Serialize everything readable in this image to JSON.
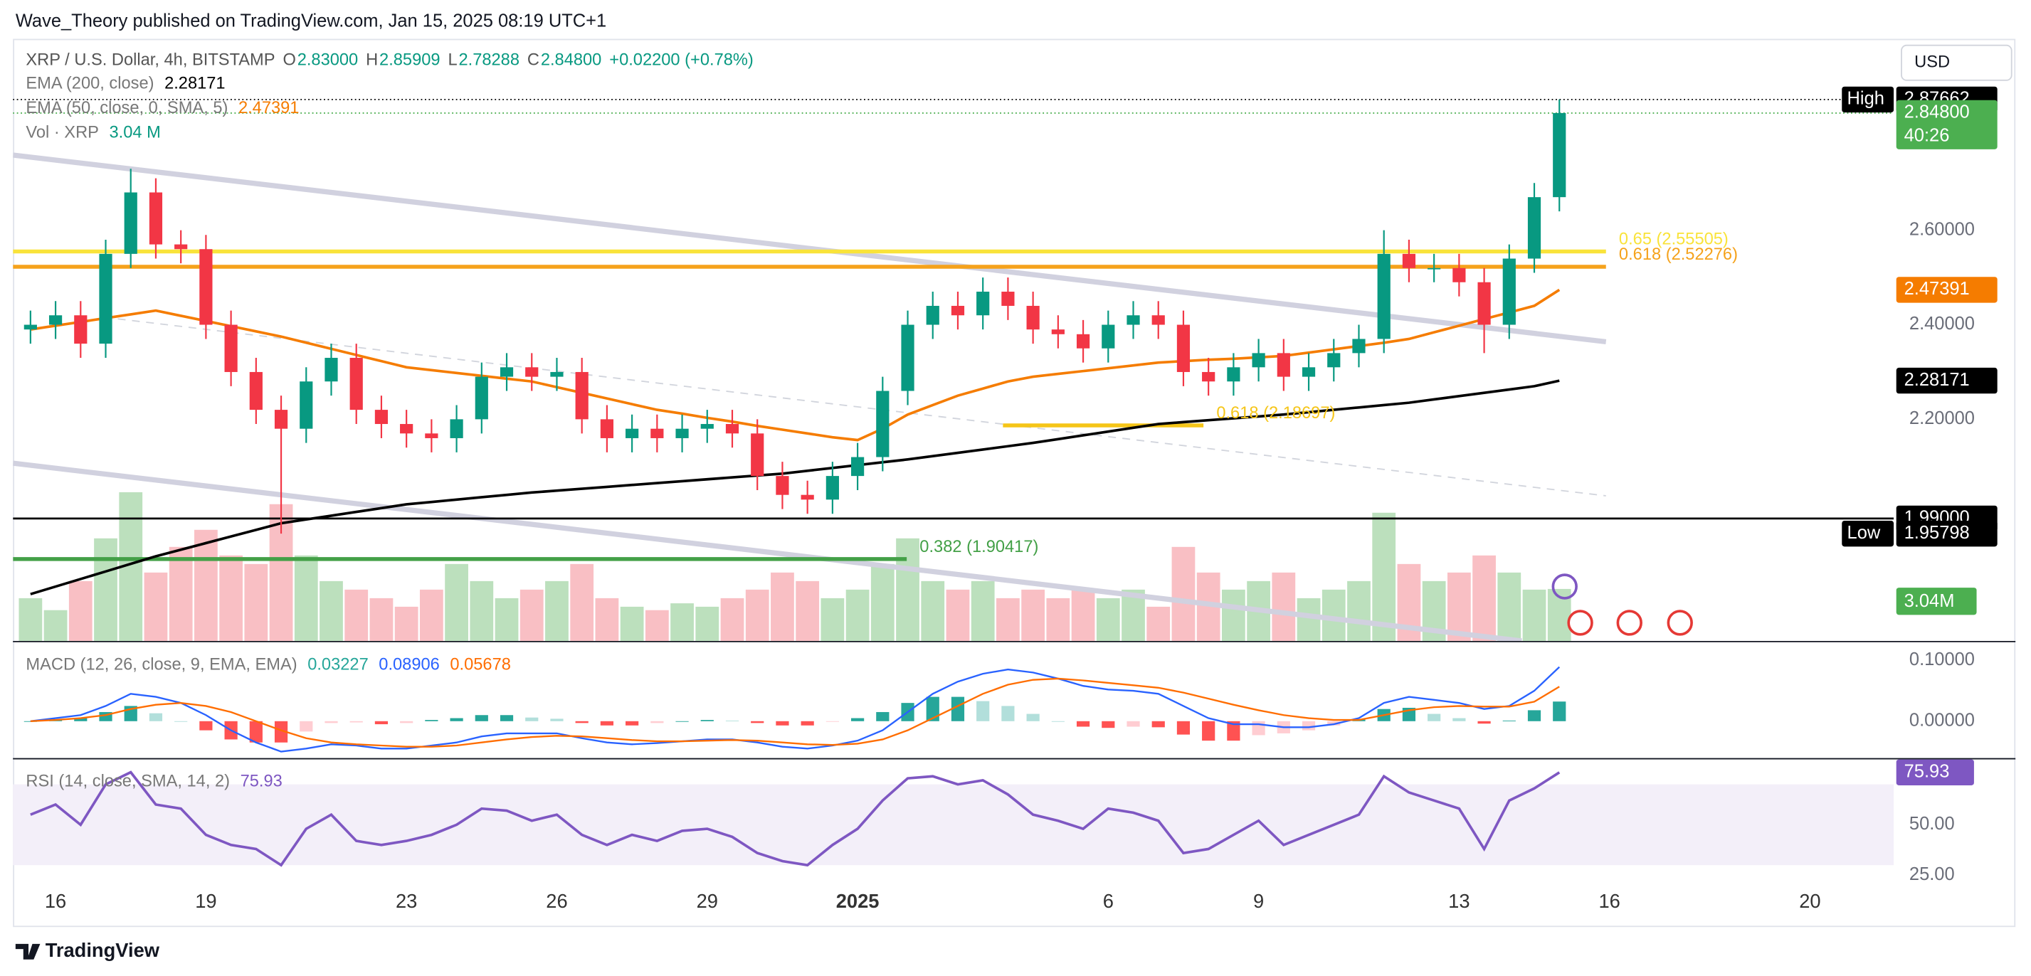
{
  "header": "Wave_Theory published on TradingView.com, Jan 15, 2025 08:19 UTC+1",
  "footer": "TradingView",
  "currency": "USD",
  "chart_data": [
    {
      "type": "candlestick",
      "title": "XRP / U.S. Dollar, 4h, BITSTAMP",
      "ohlc_legend": [
        "O",
        "2.83000",
        "H",
        "2.85909",
        "L",
        "2.78288",
        "C",
        "2.84800"
      ],
      "change": "+0.02200 (+0.78%)",
      "countdown": "40:26",
      "colors": {
        "up": "#089981",
        "down": "#f23645"
      },
      "xlim": [
        0.15,
        37.67
      ],
      "xticks": [
        {
          "value": 1,
          "label": "16"
        },
        {
          "value": 4,
          "label": "19"
        },
        {
          "value": 8,
          "label": "23"
        },
        {
          "value": 11,
          "label": "26"
        },
        {
          "value": 14,
          "label": "29"
        },
        {
          "value": 17,
          "label": "2025"
        },
        {
          "value": 22,
          "label": "6"
        },
        {
          "value": 25,
          "label": "9"
        },
        {
          "value": 29,
          "label": "13"
        },
        {
          "value": 32,
          "label": "16"
        },
        {
          "value": 36,
          "label": "20"
        }
      ],
      "ylim": [
        1.731,
        3.005
      ],
      "yticks": [
        {
          "value": 2.2,
          "label": "2.20000"
        },
        {
          "value": 2.4,
          "label": "2.40000"
        },
        {
          "value": 2.6,
          "label": "2.60000"
        }
      ],
      "grid": false,
      "x": [
        0.5,
        1,
        1.5,
        2,
        2.5,
        3,
        3.5,
        4,
        4.5,
        5,
        5.5,
        6,
        6.5,
        7,
        7.5,
        8,
        8.5,
        9,
        9.5,
        10,
        10.5,
        11,
        11.5,
        12,
        12.5,
        13,
        13.5,
        14,
        14.5,
        15,
        15.5,
        16,
        16.5,
        17,
        17.5,
        18,
        18.5,
        19,
        19.5,
        20,
        20.5,
        21,
        21.5,
        22,
        22.5,
        23,
        23.5,
        24,
        24.5,
        25,
        25.5,
        26,
        26.5,
        27,
        27.5,
        28,
        28.5,
        29,
        29.5,
        30,
        30.5,
        31
      ],
      "open": [
        2.39,
        2.4,
        2.42,
        2.36,
        2.55,
        2.68,
        2.57,
        2.56,
        2.4,
        2.3,
        2.22,
        2.18,
        2.28,
        2.33,
        2.22,
        2.19,
        2.17,
        2.16,
        2.2,
        2.29,
        2.31,
        2.29,
        2.3,
        2.2,
        2.16,
        2.18,
        2.16,
        2.18,
        2.19,
        2.17,
        2.08,
        2.04,
        2.03,
        2.08,
        2.12,
        2.26,
        2.4,
        2.44,
        2.42,
        2.47,
        2.44,
        2.39,
        2.38,
        2.35,
        2.4,
        2.42,
        2.4,
        2.3,
        2.28,
        2.31,
        2.34,
        2.29,
        2.31,
        2.34,
        2.37,
        2.55,
        2.52,
        2.52,
        2.49,
        2.4,
        2.54,
        2.67
      ],
      "high": [
        2.43,
        2.45,
        2.45,
        2.58,
        2.73,
        2.71,
        2.6,
        2.59,
        2.43,
        2.33,
        2.25,
        2.31,
        2.36,
        2.36,
        2.25,
        2.22,
        2.2,
        2.23,
        2.32,
        2.34,
        2.34,
        2.33,
        2.33,
        2.23,
        2.21,
        2.21,
        2.21,
        2.22,
        2.22,
        2.2,
        2.11,
        2.07,
        2.11,
        2.15,
        2.29,
        2.43,
        2.47,
        2.47,
        2.5,
        2.5,
        2.47,
        2.42,
        2.41,
        2.43,
        2.45,
        2.45,
        2.43,
        2.33,
        2.34,
        2.37,
        2.37,
        2.34,
        2.37,
        2.4,
        2.6,
        2.58,
        2.55,
        2.55,
        2.52,
        2.57,
        2.7,
        2.87662
      ],
      "low": [
        2.36,
        2.37,
        2.33,
        2.33,
        2.52,
        2.54,
        2.53,
        2.37,
        2.27,
        2.19,
        1.95798,
        2.15,
        2.25,
        2.19,
        2.16,
        2.14,
        2.13,
        2.13,
        2.17,
        2.26,
        2.26,
        2.26,
        2.17,
        2.13,
        2.13,
        2.13,
        2.13,
        2.15,
        2.14,
        2.05,
        2.01,
        2.0,
        2.0,
        2.05,
        2.09,
        2.23,
        2.37,
        2.39,
        2.39,
        2.41,
        2.36,
        2.35,
        2.32,
        2.32,
        2.37,
        2.37,
        2.27,
        2.25,
        2.25,
        2.28,
        2.26,
        2.26,
        2.28,
        2.31,
        2.34,
        2.49,
        2.49,
        2.46,
        2.34,
        2.37,
        2.51,
        2.64
      ],
      "close": [
        2.4,
        2.42,
        2.36,
        2.55,
        2.68,
        2.57,
        2.56,
        2.4,
        2.3,
        2.22,
        2.18,
        2.28,
        2.33,
        2.22,
        2.19,
        2.17,
        2.16,
        2.2,
        2.29,
        2.31,
        2.29,
        2.3,
        2.2,
        2.16,
        2.18,
        2.16,
        2.18,
        2.19,
        2.17,
        2.08,
        2.04,
        2.03,
        2.08,
        2.12,
        2.26,
        2.4,
        2.44,
        2.42,
        2.47,
        2.44,
        2.39,
        2.38,
        2.35,
        2.4,
        2.42,
        2.4,
        2.3,
        2.28,
        2.31,
        2.34,
        2.29,
        2.31,
        2.34,
        2.37,
        2.55,
        2.52,
        2.52,
        2.49,
        2.4,
        2.54,
        2.67,
        2.848
      ],
      "series": [
        {
          "name": "EMA (200, close)",
          "color": "#000000",
          "values": [
            1.83,
            1.846,
            1.862,
            1.878,
            1.894,
            1.91,
            1.924,
            1.938,
            1.952,
            1.966,
            1.98,
            1.988,
            1.996,
            2.004,
            2.012,
            2.02,
            2.025,
            2.03,
            2.035,
            2.04,
            2.045,
            2.049,
            2.053,
            2.057,
            2.061,
            2.065,
            2.069,
            2.073,
            2.077,
            2.081,
            2.085,
            2.091,
            2.097,
            2.103,
            2.109,
            2.115,
            2.122,
            2.129,
            2.136,
            2.143,
            2.15,
            2.158,
            2.166,
            2.174,
            2.182,
            2.19,
            2.194,
            2.198,
            2.202,
            2.206,
            2.21,
            2.215,
            2.22,
            2.225,
            2.23,
            2.235,
            2.242,
            2.249,
            2.256,
            2.263,
            2.27,
            2.28171
          ]
        },
        {
          "name": "EMA (50, close, 0, SMA, 5)",
          "color": "#f57c00",
          "values": [
            2.39,
            2.398,
            2.406,
            2.414,
            2.422,
            2.43,
            2.419,
            2.408,
            2.397,
            2.386,
            2.375,
            2.362,
            2.349,
            2.336,
            2.323,
            2.31,
            2.304,
            2.298,
            2.292,
            2.286,
            2.28,
            2.268,
            2.256,
            2.244,
            2.232,
            2.22,
            2.212,
            2.203,
            2.195,
            2.186,
            2.178,
            2.17,
            2.162,
            2.156,
            2.18,
            2.21,
            2.23,
            2.25,
            2.265,
            2.28,
            2.29,
            2.296,
            2.302,
            2.308,
            2.314,
            2.32,
            2.323,
            2.326,
            2.328,
            2.331,
            2.334,
            2.341,
            2.348,
            2.355,
            2.362,
            2.37,
            2.384,
            2.398,
            2.412,
            2.426,
            2.44,
            2.47391
          ]
        }
      ],
      "levels": [
        {
          "label": "0.65 (2.55505)",
          "value": 2.55505,
          "color": "#f9e33a",
          "x": [
            0.15,
            31.93
          ]
        },
        {
          "label": "0.618 (2.52276)",
          "value": 2.52276,
          "color": "#f5a21b",
          "x": [
            0.15,
            31.93
          ]
        },
        {
          "label": "0.618 (2.18697)",
          "value": 2.18697,
          "color": "#f5c518",
          "x": [
            19.9,
            23.9
          ]
        },
        {
          "label": "0.382 (1.90417)",
          "value": 1.90417,
          "color": "#43a047",
          "x": [
            0.15,
            17.98
          ]
        },
        {
          "value": 1.99,
          "color": "#000000",
          "x": [
            0.15,
            37.67
          ]
        }
      ],
      "trendlines": [
        {
          "x": [
            0.15,
            31.93
          ],
          "y": [
            2.759,
            2.364
          ],
          "color": "#d1d1df",
          "style": "solid"
        },
        {
          "x": [
            0.15,
            30.25
          ],
          "y": [
            2.107,
            1.731
          ],
          "color": "#d1d1df",
          "style": "solid"
        },
        {
          "x": [
            1.96,
            31.93
          ],
          "y": [
            2.416,
            2.038
          ],
          "color": "#d1d4dc",
          "style": "dashed"
        }
      ],
      "price_labels": [
        {
          "value": 2.848,
          "label": "2.84800",
          "color": "#4caf50",
          "line": "dotted"
        },
        {
          "value": 2.87662,
          "label": "2.87662",
          "color": "#000000",
          "tag": "High",
          "line": "dotted"
        },
        {
          "value": 2.47391,
          "label": "2.47391",
          "color": "#f57c00"
        },
        {
          "value": 2.28171,
          "label": "2.28171",
          "color": "#000000"
        },
        {
          "value": 1.99,
          "label": "1.99000",
          "color": "#000000"
        },
        {
          "value": 1.95798,
          "label": "1.95798",
          "color": "#000000",
          "tag": "Low"
        }
      ]
    },
    {
      "type": "bar",
      "title": "Vol · XRP",
      "legend_value": "3.04 M",
      "badge": "3.04M",
      "colors": {
        "up": "#a5d6a7",
        "down": "#f7a9b0"
      },
      "ylim": [
        0,
        10
      ],
      "values": [
        2.5,
        1.8,
        3.5,
        6.0,
        8.7,
        4.0,
        5.5,
        6.5,
        5.0,
        4.5,
        8.0,
        5.0,
        3.5,
        3.0,
        2.5,
        2.0,
        3.0,
        4.5,
        3.5,
        2.5,
        3.0,
        3.5,
        4.5,
        2.5,
        2.0,
        1.8,
        2.2,
        2.0,
        2.5,
        3.0,
        4.0,
        3.5,
        2.5,
        3.0,
        4.5,
        6.0,
        3.5,
        3.0,
        3.5,
        2.5,
        3.0,
        2.5,
        3.0,
        2.5,
        3.0,
        2.0,
        5.5,
        4.0,
        3.0,
        3.5,
        4.0,
        2.5,
        3.0,
        3.5,
        7.5,
        4.5,
        3.5,
        4.0,
        5.0,
        4.0,
        3.0,
        3.04
      ]
    },
    {
      "type": "macd",
      "title": "MACD (12, 26, close, 9, EMA, EMA)",
      "ylim": [
        -0.0596,
        0.1277
      ],
      "yticks": [
        {
          "value": 0.1,
          "label": "0.10000"
        },
        {
          "value": 0,
          "label": "0.00000"
        }
      ],
      "hist_colors": {
        "up_rising": "#26a69a",
        "up_falling": "#b2dfdb",
        "down_falling": "#ff5252",
        "down_rising": "#ffcdd2"
      },
      "series": [
        {
          "color": "#26a69a",
          "values": [
            0,
            0.003,
            0.005,
            0.015,
            0.025,
            0.013,
            0,
            -0.015,
            -0.03,
            -0.035,
            -0.035,
            -0.017,
            -0.003,
            -0.002,
            -0.005,
            -0.003,
            0.002,
            0.005,
            0.01,
            0.01,
            0.006,
            0.004,
            -0.003,
            -0.007,
            -0.007,
            -0.003,
            0,
            0.002,
            0.001,
            -0.003,
            -0.007,
            -0.007,
            -0.001,
            0.005,
            0.015,
            0.03,
            0.04,
            0.04,
            0.033,
            0.025,
            0.012,
            0,
            -0.009,
            -0.011,
            -0.009,
            -0.01,
            -0.022,
            -0.032,
            -0.032,
            -0.023,
            -0.02,
            -0.015,
            -0.007,
            0.003,
            0.02,
            0.022,
            0.012,
            0.005,
            -0.004,
            0.001,
            0.018,
            0.03227
          ]
        },
        {
          "color": "#2962ff",
          "values": [
            0,
            0.005,
            0.01,
            0.025,
            0.045,
            0.04,
            0.03,
            0.01,
            -0.015,
            -0.035,
            -0.05,
            -0.045,
            -0.038,
            -0.04,
            -0.045,
            -0.045,
            -0.04,
            -0.035,
            -0.025,
            -0.02,
            -0.02,
            -0.02,
            -0.028,
            -0.035,
            -0.038,
            -0.036,
            -0.033,
            -0.03,
            -0.03,
            -0.035,
            -0.042,
            -0.045,
            -0.04,
            -0.032,
            -0.015,
            0.015,
            0.045,
            0.065,
            0.078,
            0.085,
            0.08,
            0.07,
            0.058,
            0.052,
            0.05,
            0.045,
            0.025,
            0.005,
            -0.005,
            -0.005,
            -0.01,
            -0.01,
            -0.005,
            0.005,
            0.03,
            0.04,
            0.035,
            0.03,
            0.02,
            0.025,
            0.05,
            0.08906
          ]
        },
        {
          "color": "#ff6d00",
          "values": [
            0,
            0.002,
            0.005,
            0.01,
            0.02,
            0.027,
            0.03,
            0.025,
            0.015,
            0,
            -0.015,
            -0.028,
            -0.035,
            -0.038,
            -0.04,
            -0.042,
            -0.042,
            -0.04,
            -0.035,
            -0.03,
            -0.026,
            -0.024,
            -0.025,
            -0.028,
            -0.031,
            -0.033,
            -0.033,
            -0.032,
            -0.031,
            -0.032,
            -0.035,
            -0.038,
            -0.039,
            -0.037,
            -0.03,
            -0.015,
            0.005,
            0.025,
            0.045,
            0.06,
            0.068,
            0.07,
            0.067,
            0.063,
            0.059,
            0.055,
            0.047,
            0.037,
            0.027,
            0.018,
            0.01,
            0.005,
            0.002,
            0.002,
            0.01,
            0.018,
            0.023,
            0.025,
            0.024,
            0.024,
            0.032,
            0.05678
          ]
        }
      ]
    },
    {
      "type": "line",
      "title": "RSI (14, close, SMA, 14, 2)",
      "ylim": [
        17.3,
        82.05
      ],
      "yticks": [
        {
          "value": 50,
          "label": "50.00"
        },
        {
          "value": 25,
          "label": "25.00"
        }
      ],
      "band": [
        30,
        70
      ],
      "color": "#7e57c2",
      "values": [
        55,
        60,
        50,
        70,
        76,
        60,
        58,
        45,
        40,
        38,
        30,
        48,
        55,
        42,
        40,
        42,
        45,
        50,
        58,
        57,
        52,
        55,
        45,
        40,
        45,
        42,
        47,
        48,
        44,
        36,
        32,
        30,
        40,
        48,
        62,
        73,
        74,
        70,
        72,
        65,
        55,
        52,
        48,
        58,
        56,
        52,
        36,
        38,
        45,
        52,
        40,
        45,
        50,
        55,
        74,
        66,
        62,
        58,
        38,
        62,
        68,
        75.93
      ]
    }
  ]
}
